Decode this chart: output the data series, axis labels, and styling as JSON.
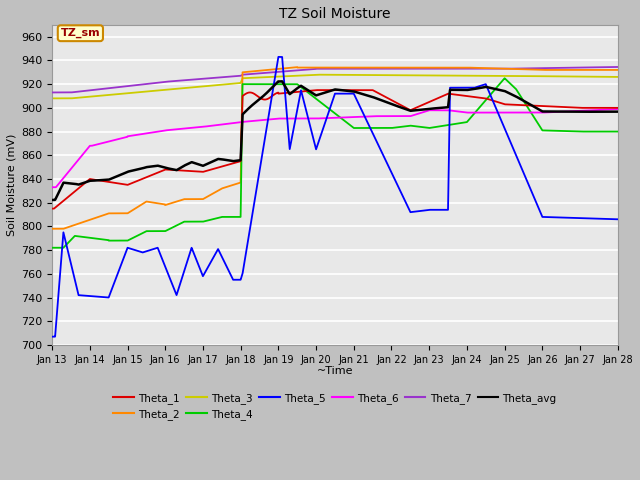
{
  "title": "TZ Soil Moisture",
  "xlabel": "~Time",
  "ylabel": "Soil Moisture (mV)",
  "legend_label": "TZ_sm",
  "ylim": [
    700,
    970
  ],
  "series_colors": {
    "Theta_1": "#dd0000",
    "Theta_2": "#ff8800",
    "Theta_3": "#cccc00",
    "Theta_4": "#00cc00",
    "Theta_5": "#0000ff",
    "Theta_6": "#ff00ff",
    "Theta_7": "#9933cc",
    "Theta_avg": "#000000"
  },
  "fig_bg": "#c8c8c8",
  "plot_bg": "#e8e8e8",
  "xtick_labels": [
    "Jan 13",
    "Jan 14",
    "Jan 15",
    "Jan 16",
    "Jan 17",
    "Jan 18",
    "Jan 19",
    "Jan 20",
    "Jan 21",
    "Jan 22",
    "Jan 23",
    "Jan 24",
    "Jan 25",
    "Jan 26",
    "Jan 27",
    "Jan 28"
  ]
}
